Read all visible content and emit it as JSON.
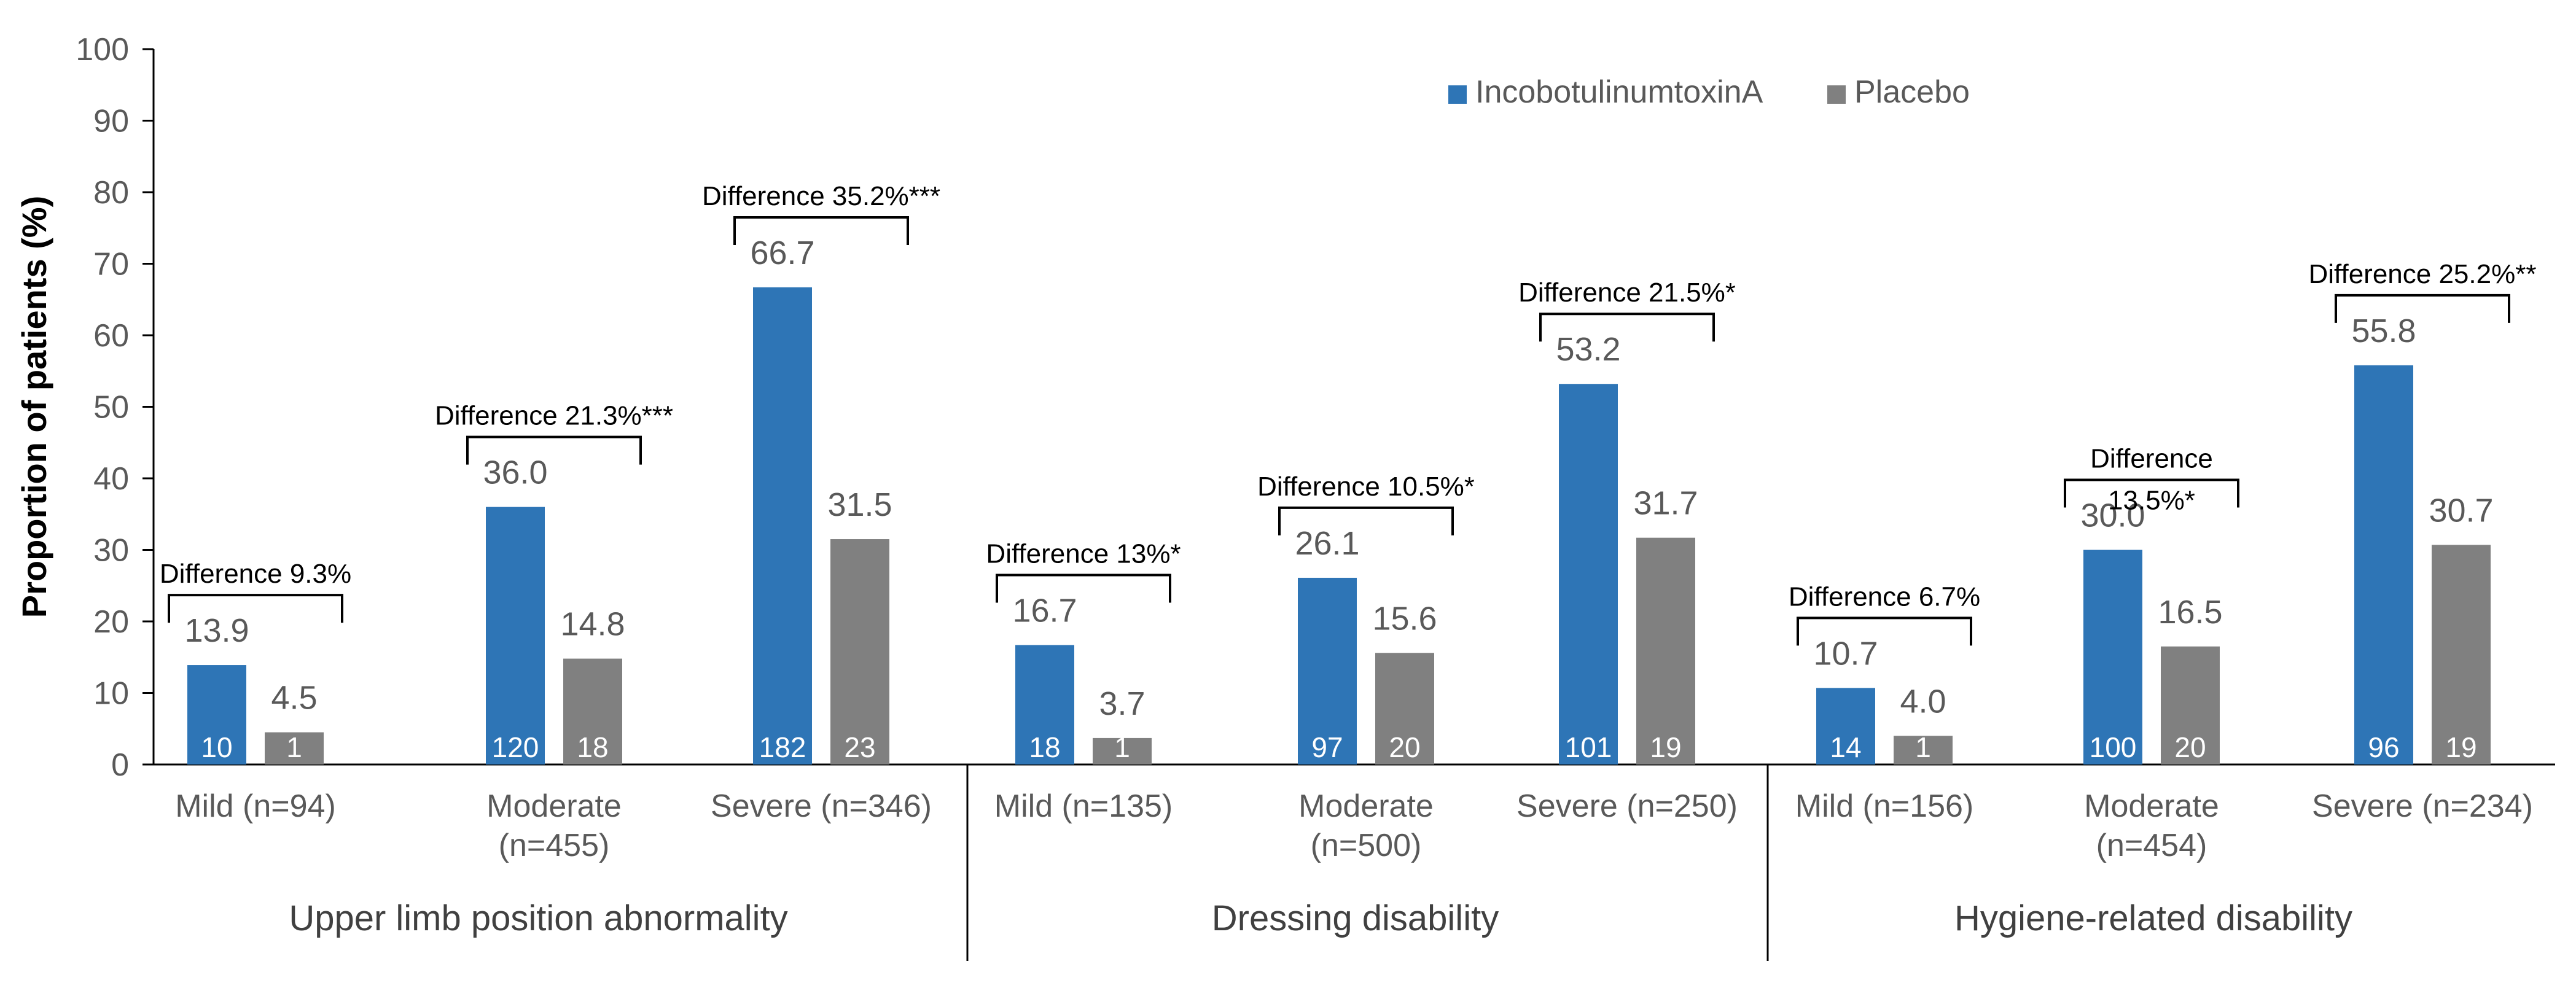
{
  "chart_data": {
    "type": "bar",
    "title": "",
    "xlabel": "",
    "ylabel": "Proportion of patients (%)",
    "ylim": [
      0,
      100
    ],
    "yticks": [
      "0",
      "10",
      "20",
      "30",
      "40",
      "50",
      "60",
      "70",
      "80",
      "90",
      "100"
    ],
    "legend_position": "top-right",
    "series": [
      {
        "name": "IncobotulinumtoxinA",
        "color": "#2E75B6"
      },
      {
        "name": "Placebo",
        "color": "#808080"
      }
    ],
    "groups": [
      {
        "name": "Upper limb position abnormality",
        "categories": [
          {
            "label_lines": [
              "Mild (n=94)"
            ],
            "values": [
              13.9,
              4.5
            ],
            "value_labels": [
              "13.9",
              "4.5"
            ],
            "counts": [
              "10",
              "1"
            ],
            "difference": [
              "Difference 9.3%"
            ]
          },
          {
            "label_lines": [
              "Moderate",
              "(n=455)"
            ],
            "values": [
              36.0,
              14.8
            ],
            "value_labels": [
              "36.0",
              "14.8"
            ],
            "counts": [
              "120",
              "18"
            ],
            "difference": [
              "Difference 21.3%***"
            ]
          },
          {
            "label_lines": [
              "Severe (n=346)"
            ],
            "values": [
              66.7,
              31.5
            ],
            "value_labels": [
              "66.7",
              "31.5"
            ],
            "counts": [
              "182",
              "23"
            ],
            "difference": [
              "Difference 35.2%***"
            ]
          }
        ]
      },
      {
        "name": "Dressing disability",
        "categories": [
          {
            "label_lines": [
              "Mild (n=135)"
            ],
            "values": [
              16.7,
              3.7
            ],
            "value_labels": [
              "16.7",
              "3.7"
            ],
            "counts": [
              "18",
              "1"
            ],
            "difference": [
              "Difference 13%*"
            ]
          },
          {
            "label_lines": [
              "Moderate",
              "(n=500)"
            ],
            "values": [
              26.1,
              15.6
            ],
            "value_labels": [
              "26.1",
              "15.6"
            ],
            "counts": [
              "97",
              "20"
            ],
            "difference": [
              "Difference 10.5%*"
            ]
          },
          {
            "label_lines": [
              "Severe (n=250)"
            ],
            "values": [
              53.2,
              31.7
            ],
            "value_labels": [
              "53.2",
              "31.7"
            ],
            "counts": [
              "101",
              "19"
            ],
            "difference": [
              "Difference 21.5%*"
            ]
          }
        ]
      },
      {
        "name": "Hygiene-related disability",
        "categories": [
          {
            "label_lines": [
              "Mild (n=156)"
            ],
            "values": [
              10.7,
              4.0
            ],
            "value_labels": [
              "10.7",
              "4.0"
            ],
            "counts": [
              "14",
              "1"
            ],
            "difference": [
              "Difference 6.7%"
            ]
          },
          {
            "label_lines": [
              "Moderate",
              "(n=454)"
            ],
            "values": [
              30.0,
              16.5
            ],
            "value_labels": [
              "30.0",
              "16.5"
            ],
            "counts": [
              "100",
              "20"
            ],
            "difference": [
              "Difference",
              "13.5%*"
            ]
          },
          {
            "label_lines": [
              "Severe (n=234)"
            ],
            "values": [
              55.8,
              30.7
            ],
            "value_labels": [
              "55.8",
              "30.7"
            ],
            "counts": [
              "96",
              "19"
            ],
            "difference": [
              "Difference 25.2%**"
            ]
          }
        ]
      }
    ]
  }
}
